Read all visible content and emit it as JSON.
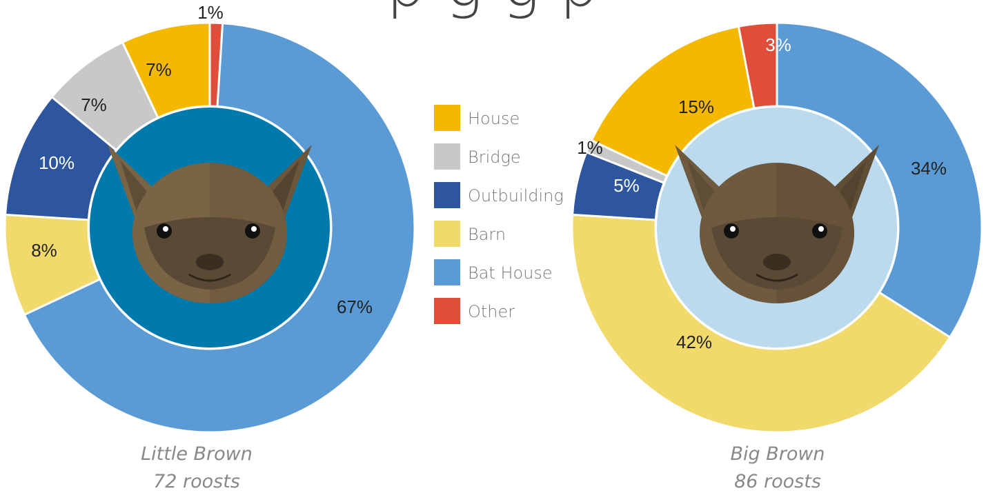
{
  "title_fragment": "p   g   g p",
  "colors": {
    "House": "#F5B800",
    "Bridge": "#C8C8C8",
    "Outbuilding": "#2E569E",
    "Barn": "#F2D96B",
    "Bat House": "#5B9BD5",
    "Other": "#E04E3A"
  },
  "legend": [
    "House",
    "Bridge",
    "Outbuilding",
    "Barn",
    "Bat House",
    "Other"
  ],
  "chart_data": [
    {
      "type": "pie",
      "name": "Little Brown",
      "caption_line1": "Little Brown",
      "caption_line2": "72 roosts",
      "center_color": "#0079AD",
      "slices": [
        {
          "category": "Other",
          "value": 1,
          "label": "1%"
        },
        {
          "category": "Bat House",
          "value": 67,
          "label": "67%"
        },
        {
          "category": "Barn",
          "value": 8,
          "label": "8%"
        },
        {
          "category": "Outbuilding",
          "value": 10,
          "label": "10%"
        },
        {
          "category": "Bridge",
          "value": 7,
          "label": "7%"
        },
        {
          "category": "House",
          "value": 7,
          "label": "7%"
        }
      ]
    },
    {
      "type": "pie",
      "name": "Big Brown",
      "caption_line1": "Big Brown",
      "caption_line2": "86 roosts",
      "center_color": "#BBDAEE",
      "slices": [
        {
          "category": "Bat House",
          "value": 34,
          "label": "34%"
        },
        {
          "category": "Barn",
          "value": 42,
          "label": "42%"
        },
        {
          "category": "Outbuilding",
          "value": 5,
          "label": "5%"
        },
        {
          "category": "Bridge",
          "value": 1,
          "label": "1%"
        },
        {
          "category": "House",
          "value": 15,
          "label": "15%"
        },
        {
          "category": "Other",
          "value": 3,
          "label": "3%"
        }
      ]
    }
  ]
}
